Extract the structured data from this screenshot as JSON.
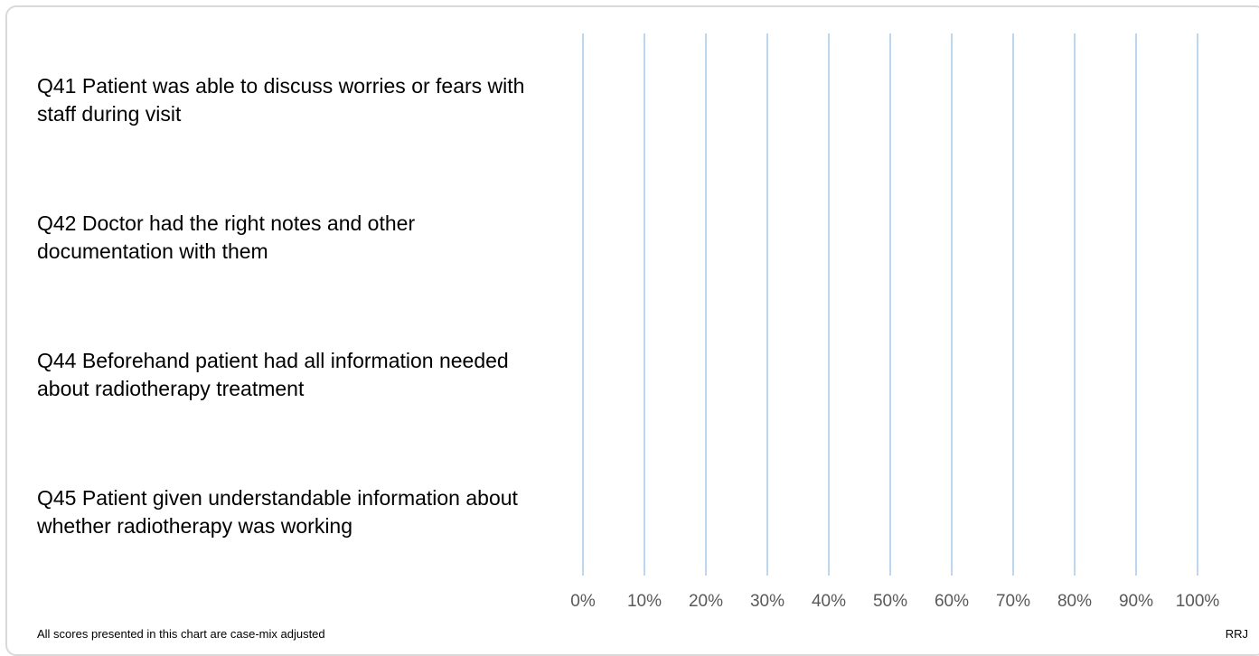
{
  "chart_data": {
    "type": "bar",
    "orientation": "horizontal",
    "categories": [
      "Q41 Patient was able to discuss worries or fears with staff during visit",
      "Q42 Doctor had the right notes and other documentation with them",
      "Q44 Beforehand patient had all information needed about radiotherapy treatment",
      "Q45 Patient given understandable information about whether radiotherapy was working"
    ],
    "series": [],
    "xlim": [
      0,
      100
    ],
    "xticks": [
      "0%",
      "10%",
      "20%",
      "30%",
      "40%",
      "50%",
      "60%",
      "70%",
      "80%",
      "90%",
      "100%"
    ],
    "grid": true,
    "gridline_color": "#bdd7ee"
  },
  "footer": {
    "note": "All scores presented in this chart are case-mix adjusted",
    "code": "RRJ"
  }
}
